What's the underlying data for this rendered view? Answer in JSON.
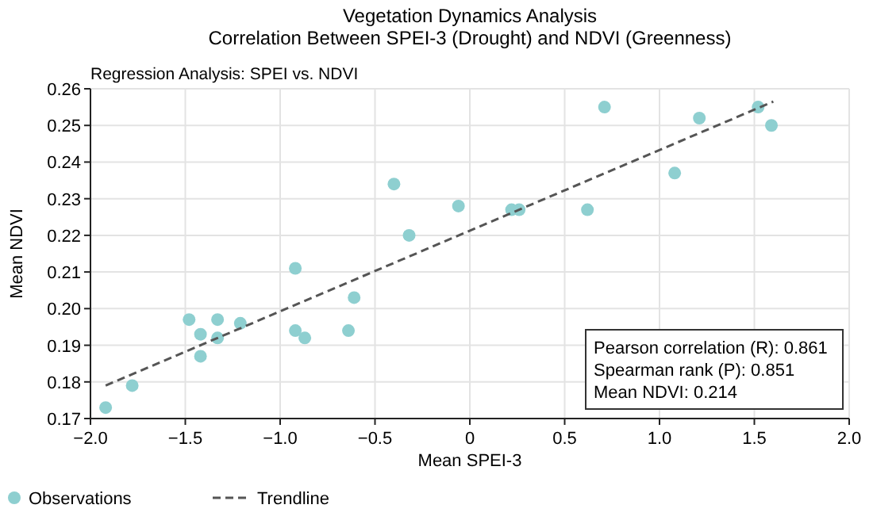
{
  "chart_data": {
    "type": "scatter",
    "title": "Vegetation Dynamics Analysis\nCorrelation Between SPEI-3 (Drought) and NDVI (Greenness)",
    "subtitle": "Regression Analysis: SPEI vs. NDVI",
    "xlabel": "Mean SPEI-3",
    "ylabel": "Mean NDVI",
    "xlim": [
      -2,
      2
    ],
    "xticks": [
      {
        "value": -2,
        "label": "−2.0"
      },
      {
        "value": -1.5,
        "label": "−1.5"
      },
      {
        "value": -1,
        "label": "−1.0"
      },
      {
        "value": -0.5,
        "label": "−0.5"
      },
      0,
      {
        "value": 0.5,
        "label": "0.5"
      },
      {
        "value": 1,
        "label": "1.0"
      },
      {
        "value": 1.5,
        "label": "1.5"
      },
      {
        "value": 2,
        "label": "2.0"
      }
    ],
    "ylim": [
      0.17,
      0.26
    ],
    "yticks": [
      {
        "value": 0.17,
        "label": "0.17"
      },
      {
        "value": 0.18,
        "label": "0.18"
      },
      {
        "value": 0.19,
        "label": "0.19"
      },
      {
        "value": 0.2,
        "label": "0.20"
      },
      {
        "value": 0.21,
        "label": "0.21"
      },
      {
        "value": 0.22,
        "label": "0.22"
      },
      {
        "value": 0.23,
        "label": "0.23"
      },
      {
        "value": 0.24,
        "label": "0.24"
      },
      {
        "value": 0.25,
        "label": "0.25"
      },
      {
        "value": 0.26,
        "label": "0.26"
      }
    ],
    "grid": true,
    "legend": "bottom left",
    "marker": "circle",
    "series": [
      {
        "name": "Observations",
        "color": "#8ecfd0",
        "x": [
          -1.92,
          -1.78,
          -1.48,
          -1.42,
          -1.42,
          -1.33,
          -1.33,
          -1.21,
          -0.92,
          -0.92,
          -0.87,
          -0.64,
          -0.61,
          -0.4,
          -0.32,
          -0.06,
          0.22,
          0.26,
          0.62,
          0.71,
          1.08,
          1.21,
          1.52,
          1.59
        ],
        "values": [
          0.173,
          0.179,
          0.197,
          0.193,
          0.187,
          0.197,
          0.192,
          0.196,
          0.211,
          0.194,
          0.192,
          0.194,
          0.203,
          0.234,
          0.22,
          0.228,
          0.227,
          0.227,
          0.227,
          0.255,
          0.237,
          0.252,
          0.255,
          0.25
        ]
      },
      {
        "name": "Trendline",
        "type": "line",
        "color": "#555555",
        "line_style": "dashed",
        "marker": "none",
        "x": [
          -1.92,
          1.6
        ],
        "values": [
          0.179,
          0.2565
        ]
      }
    ],
    "annotations": [
      "Pearson correlation (R): 0.861",
      "Spearman rank (P): 0.851",
      "Mean NDVI: 0.214"
    ]
  }
}
